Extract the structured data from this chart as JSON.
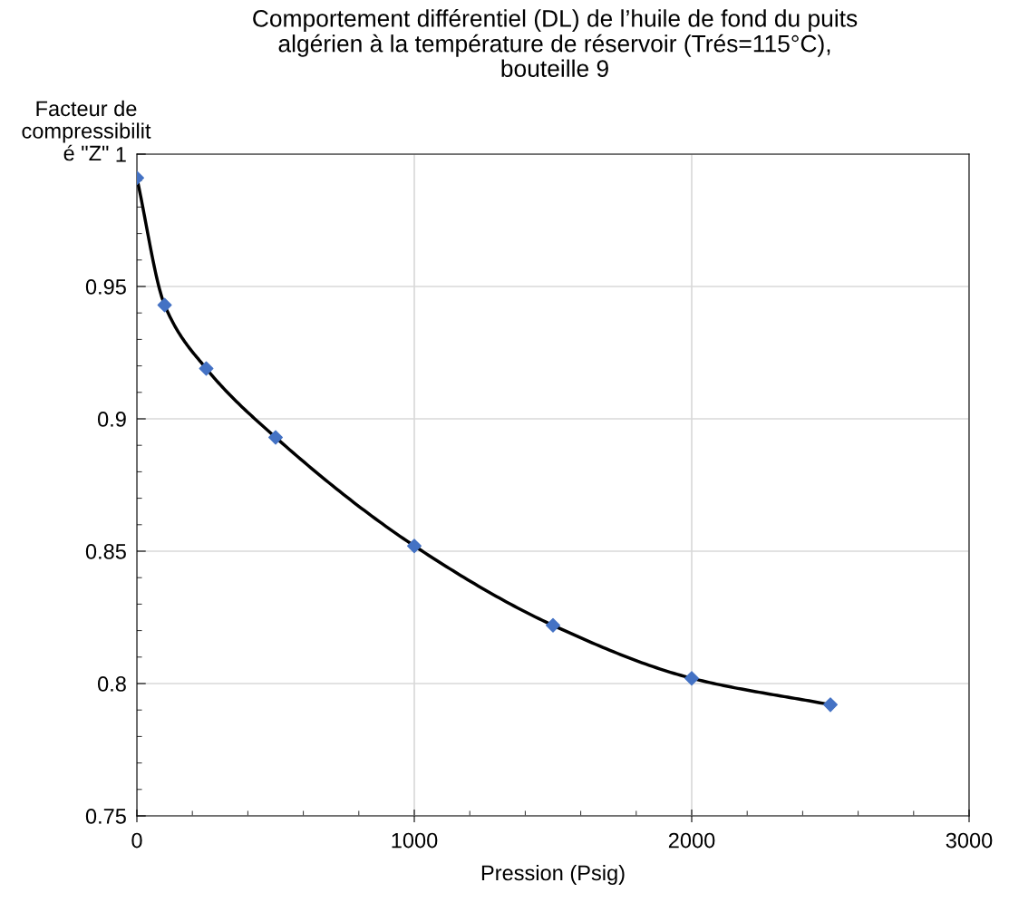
{
  "chart_data": {
    "type": "line",
    "title": "Comportement différentiel (DL) de l’huile de fond du puits\nalgérien à la température de réservoir (Trés=115°C),\nbouteille 9",
    "xlabel": "Pression (Psig)",
    "ylabel": "Facteur de\ncompressibilit\né \"Z\"",
    "x": [
      0,
      100,
      250,
      500,
      1000,
      1500,
      2000,
      2500
    ],
    "series": [
      {
        "color": "#000000",
        "marker": "none",
        "values": [
          0.991,
          0.943,
          0.919,
          0.893,
          0.852,
          0.822,
          0.802,
          0.792
        ]
      },
      {
        "type": "scatter",
        "color": "#4472c4",
        "marker": "diamond",
        "values": [
          0.991,
          0.943,
          0.919,
          0.893,
          0.852,
          0.822,
          0.802,
          0.792
        ]
      }
    ],
    "xlim": [
      0,
      3000
    ],
    "xticks": [
      0,
      1000,
      2000,
      3000
    ],
    "ylim": [
      0.75,
      1
    ],
    "yticks": [
      0.75,
      0.8,
      0.85,
      0.9,
      0.95,
      1
    ],
    "grid": true,
    "legend": false
  }
}
